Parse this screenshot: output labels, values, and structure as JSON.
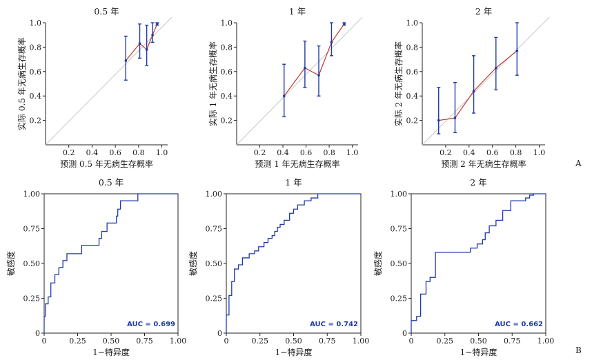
{
  "panel_labels": {
    "a": "A",
    "b": "B"
  },
  "chart_data": [
    {
      "type": "line",
      "title": "0.5 年",
      "xlabel": "预测 0.5 年无病生存概率",
      "ylabel": "实际 0.5 年无病生存概率",
      "xlim": [
        0,
        1.05
      ],
      "ylim": [
        0,
        1.0
      ],
      "xticks": [
        "0.2",
        "0.4",
        "0.6",
        "0.8",
        "1.0"
      ],
      "yticks": [
        "0.2",
        "0.4",
        "0.6",
        "0.8",
        "1.0"
      ],
      "x": [
        0.69,
        0.81,
        0.87,
        0.92,
        0.96
      ],
      "y": [
        0.69,
        0.83,
        0.78,
        0.9,
        0.99
      ],
      "lower": [
        0.53,
        0.71,
        0.65,
        0.84,
        0.98
      ],
      "upper": [
        0.89,
        0.99,
        0.98,
        1.0,
        1.0
      ],
      "colors": {
        "line": "#c0392b",
        "ci": "#1f3aa8",
        "reference": "#c8c8c8"
      }
    },
    {
      "type": "line",
      "title": "1 年",
      "xlabel": "预测 1 年无病生存概率",
      "ylabel": "实际 1 年无病生存概率",
      "xlim": [
        0,
        1.05
      ],
      "ylim": [
        0,
        1.0
      ],
      "xticks": [
        "0.2",
        "0.4",
        "0.6",
        "0.8",
        "1.0"
      ],
      "yticks": [
        "0.2",
        "0.4",
        "0.6",
        "0.8",
        "1.0"
      ],
      "x": [
        0.41,
        0.59,
        0.71,
        0.82,
        0.93
      ],
      "y": [
        0.4,
        0.63,
        0.57,
        0.84,
        0.99
      ],
      "lower": [
        0.23,
        0.47,
        0.4,
        0.73,
        0.98
      ],
      "upper": [
        0.66,
        0.85,
        0.81,
        1.0,
        1.0
      ],
      "colors": {
        "line": "#c0392b",
        "ci": "#1f3aa8",
        "reference": "#c8c8c8"
      }
    },
    {
      "type": "line",
      "title": "2 年",
      "xlabel": "预测 2 年无病生存概率",
      "ylabel": "实际 2 年无病生存概率",
      "xlim": [
        0,
        1.05
      ],
      "ylim": [
        0,
        1.0
      ],
      "xticks": [
        "0.2",
        "0.4",
        "0.6",
        "0.8",
        "1.0"
      ],
      "yticks": [
        "0.2",
        "0.4",
        "0.6",
        "0.8",
        "1.0"
      ],
      "x": [
        0.14,
        0.28,
        0.44,
        0.63,
        0.81
      ],
      "y": [
        0.2,
        0.22,
        0.44,
        0.63,
        0.77
      ],
      "lower": [
        0.09,
        0.1,
        0.26,
        0.45,
        0.57
      ],
      "upper": [
        0.47,
        0.51,
        0.73,
        0.88,
        1.0
      ],
      "colors": {
        "line": "#c0392b",
        "ci": "#1f3aa8",
        "reference": "#c8c8c8"
      }
    },
    {
      "type": "line",
      "title": "0.5 年",
      "xlabel": "1−特异度",
      "ylabel": "敏感度",
      "xlim": [
        0,
        1.0
      ],
      "ylim": [
        0,
        1.0
      ],
      "xticks": [
        "0",
        "0.25",
        "0.50",
        "0.75",
        "1.00"
      ],
      "yticks": [
        "0",
        "0.25",
        "0.50",
        "0.75",
        "1.00"
      ],
      "annotation": "AUC = 0.699",
      "x": [
        0.0,
        0.0,
        0.01,
        0.01,
        0.03,
        0.03,
        0.05,
        0.05,
        0.08,
        0.08,
        0.11,
        0.11,
        0.14,
        0.14,
        0.17,
        0.17,
        0.19,
        0.19,
        0.28,
        0.28,
        0.41,
        0.41,
        0.43,
        0.43,
        0.47,
        0.47,
        0.54,
        0.54,
        0.55,
        0.55,
        0.57,
        0.57,
        0.61,
        0.61,
        0.7,
        0.7,
        1.0
      ],
      "y": [
        0.0,
        0.12,
        0.12,
        0.21,
        0.21,
        0.26,
        0.26,
        0.36,
        0.36,
        0.42,
        0.42,
        0.47,
        0.47,
        0.52,
        0.52,
        0.57,
        0.57,
        0.57,
        0.57,
        0.63,
        0.63,
        0.68,
        0.68,
        0.73,
        0.73,
        0.79,
        0.79,
        0.84,
        0.84,
        0.89,
        0.89,
        0.95,
        0.95,
        0.95,
        0.95,
        1.0,
        1.0
      ],
      "colors": {
        "line": "#1f3aa8"
      }
    },
    {
      "type": "line",
      "title": "1 年",
      "xlabel": "1−特异度",
      "ylabel": "敏感度",
      "xlim": [
        0,
        1.0
      ],
      "ylim": [
        0,
        1.0
      ],
      "xticks": [
        "0",
        "0.25",
        "0.50",
        "0.75",
        "1.00"
      ],
      "yticks": [
        "0",
        "0.25",
        "0.50",
        "0.75",
        "1.00"
      ],
      "annotation": "AUC = 0.742",
      "x": [
        0.0,
        0.0,
        0.02,
        0.02,
        0.04,
        0.04,
        0.06,
        0.06,
        0.09,
        0.09,
        0.12,
        0.12,
        0.17,
        0.17,
        0.21,
        0.21,
        0.24,
        0.24,
        0.28,
        0.28,
        0.31,
        0.31,
        0.34,
        0.34,
        0.36,
        0.36,
        0.38,
        0.38,
        0.4,
        0.4,
        0.43,
        0.43,
        0.47,
        0.47,
        0.5,
        0.5,
        0.53,
        0.53,
        0.58,
        0.58,
        0.63,
        0.63,
        0.68,
        0.68,
        0.73,
        0.73,
        1.0
      ],
      "y": [
        0.0,
        0.13,
        0.13,
        0.27,
        0.27,
        0.37,
        0.37,
        0.46,
        0.46,
        0.49,
        0.49,
        0.54,
        0.54,
        0.57,
        0.57,
        0.59,
        0.59,
        0.62,
        0.62,
        0.65,
        0.65,
        0.68,
        0.68,
        0.7,
        0.7,
        0.73,
        0.73,
        0.76,
        0.76,
        0.78,
        0.78,
        0.81,
        0.81,
        0.86,
        0.86,
        0.89,
        0.89,
        0.92,
        0.92,
        0.95,
        0.95,
        0.97,
        0.97,
        1.0,
        1.0,
        1.0,
        1.0
      ],
      "colors": {
        "line": "#1f3aa8"
      }
    },
    {
      "type": "line",
      "title": "2 年",
      "xlabel": "1−特异度",
      "ylabel": "敏感度",
      "xlim": [
        0,
        1.0
      ],
      "ylim": [
        0,
        1.0
      ],
      "xticks": [
        "0",
        "0.25",
        "0.50",
        "0.75",
        "1.00"
      ],
      "yticks": [
        "0",
        "0.25",
        "0.50",
        "0.75",
        "1.00"
      ],
      "annotation": "AUC = 0.662",
      "x": [
        0.0,
        0.0,
        0.04,
        0.04,
        0.07,
        0.07,
        0.11,
        0.11,
        0.14,
        0.14,
        0.18,
        0.18,
        0.44,
        0.44,
        0.49,
        0.49,
        0.53,
        0.53,
        0.55,
        0.55,
        0.58,
        0.58,
        0.63,
        0.63,
        0.68,
        0.68,
        0.74,
        0.74,
        0.85,
        0.85,
        0.88,
        0.88,
        0.91,
        0.91,
        0.93,
        0.93,
        1.0
      ],
      "y": [
        0.0,
        0.09,
        0.09,
        0.12,
        0.12,
        0.28,
        0.28,
        0.37,
        0.37,
        0.4,
        0.4,
        0.58,
        0.58,
        0.61,
        0.61,
        0.64,
        0.64,
        0.67,
        0.67,
        0.72,
        0.72,
        0.77,
        0.77,
        0.81,
        0.81,
        0.88,
        0.88,
        0.95,
        0.95,
        0.97,
        0.97,
        0.99,
        0.99,
        1.0,
        1.0,
        1.0,
        1.0
      ],
      "colors": {
        "line": "#1f3aa8"
      }
    }
  ]
}
